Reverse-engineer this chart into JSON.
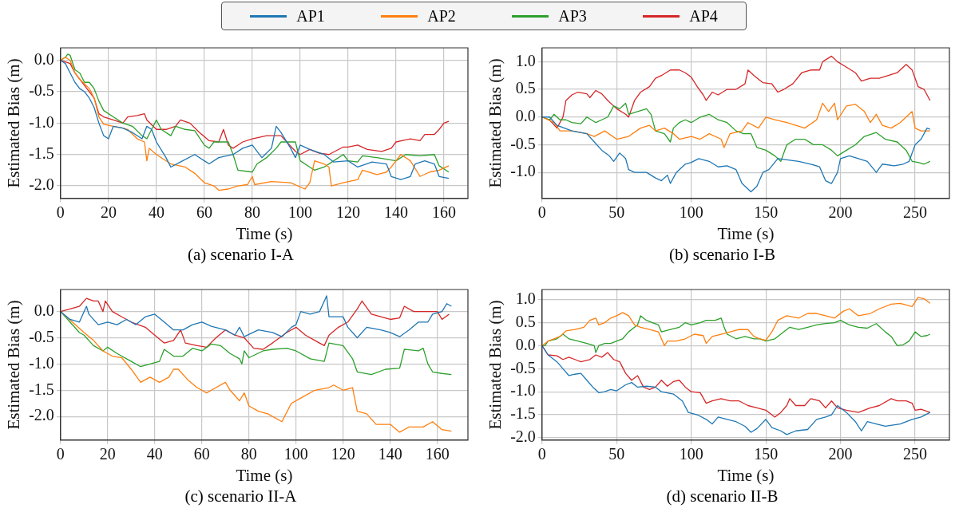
{
  "chart_data": [
    {
      "type": "line",
      "title": "(a) scenario I-A",
      "xlabel": "Time (s)",
      "ylabel": "Estimated Bias (m)",
      "legend": "top",
      "grid": true,
      "xlim": [
        0,
        170
      ],
      "xticks": [
        0,
        20,
        40,
        60,
        80,
        100,
        120,
        140,
        160
      ],
      "ylim": [
        -2.2,
        0.2
      ],
      "yticks": [
        {
          "value": -2,
          "label": "-2.0"
        },
        {
          "value": -1.5,
          "label": "-1.5"
        },
        {
          "value": -1,
          "label": "-1.0"
        },
        {
          "value": -0.5,
          "label": "-0.5"
        },
        {
          "value": 0,
          "label": "0.0"
        }
      ],
      "series": [
        {
          "name": "AP1",
          "color": "#1f77b4",
          "x": [
            0,
            2,
            4,
            6,
            8,
            10,
            12,
            14,
            16,
            18,
            20,
            22,
            26,
            30,
            34,
            36,
            38,
            40,
            44,
            46,
            50,
            56,
            60,
            62,
            66,
            72,
            76,
            80,
            84,
            88,
            90,
            92,
            96,
            98,
            100,
            104,
            110,
            114,
            120,
            124,
            130,
            136,
            138,
            142,
            146,
            148,
            152,
            156,
            158,
            162
          ],
          "values": [
            0,
            -0.05,
            -0.2,
            -0.35,
            -0.45,
            -0.5,
            -0.6,
            -0.75,
            -1.0,
            -1.2,
            -1.25,
            -1.05,
            -1.08,
            -1.15,
            -1.25,
            -1.05,
            -1.1,
            -1.3,
            -1.55,
            -1.7,
            -1.62,
            -1.5,
            -1.6,
            -1.65,
            -1.55,
            -1.5,
            -1.4,
            -1.35,
            -1.55,
            -1.4,
            -1.05,
            -1.15,
            -1.4,
            -1.55,
            -1.35,
            -1.42,
            -1.5,
            -1.62,
            -1.6,
            -1.7,
            -1.62,
            -1.65,
            -1.85,
            -1.9,
            -1.85,
            -1.65,
            -1.6,
            -1.65,
            -1.85,
            -1.88
          ]
        },
        {
          "name": "AP2",
          "color": "#ff7f0e",
          "x": [
            0,
            2,
            4,
            6,
            8,
            12,
            14,
            16,
            18,
            22,
            26,
            28,
            32,
            35,
            36,
            37,
            40,
            46,
            52,
            56,
            60,
            64,
            66,
            70,
            74,
            78,
            80,
            81,
            88,
            96,
            102,
            104,
            106,
            110,
            112,
            113,
            118,
            124,
            126,
            132,
            136,
            138,
            142,
            146,
            150,
            154,
            158,
            162
          ],
          "values": [
            0,
            0.05,
            0,
            -0.2,
            -0.3,
            -0.45,
            -0.6,
            -0.9,
            -1.02,
            -1.05,
            -1.08,
            -1.1,
            -1.25,
            -1.3,
            -1.6,
            -1.4,
            -1.5,
            -1.65,
            -1.7,
            -1.8,
            -1.95,
            -2.0,
            -2.07,
            -2.05,
            -2.0,
            -1.98,
            -1.85,
            -1.98,
            -1.93,
            -1.95,
            -2.05,
            -1.95,
            -1.6,
            -1.65,
            -1.7,
            -2.0,
            -1.95,
            -1.9,
            -1.75,
            -1.82,
            -1.78,
            -1.7,
            -1.5,
            -1.6,
            -1.85,
            -1.78,
            -1.75,
            -1.68
          ]
        },
        {
          "name": "AP3",
          "color": "#2ca02c",
          "x": [
            0,
            2,
            3,
            4,
            6,
            8,
            10,
            12,
            14,
            16,
            18,
            22,
            26,
            30,
            34,
            36,
            38,
            40,
            42,
            46,
            48,
            52,
            56,
            60,
            62,
            64,
            70,
            72,
            74,
            80,
            82,
            86,
            90,
            92,
            98,
            100,
            104,
            106,
            110,
            114,
            118,
            120,
            124,
            126,
            132,
            140,
            144,
            150,
            156,
            158,
            162
          ],
          "values": [
            0,
            0.05,
            0.1,
            0.08,
            -0.15,
            -0.2,
            -0.35,
            -0.35,
            -0.45,
            -0.65,
            -0.8,
            -0.9,
            -1.0,
            -1.05,
            -1.2,
            -1.25,
            -1.1,
            -0.95,
            -1.1,
            -1.2,
            -1.05,
            -1.1,
            -1.12,
            -1.35,
            -1.4,
            -1.3,
            -1.3,
            -1.5,
            -1.75,
            -1.78,
            -1.65,
            -1.55,
            -1.4,
            -1.3,
            -1.3,
            -1.6,
            -1.7,
            -1.75,
            -1.7,
            -1.6,
            -1.5,
            -1.6,
            -1.62,
            -1.52,
            -1.55,
            -1.6,
            -1.5,
            -1.52,
            -1.5,
            -1.68,
            -1.78
          ]
        },
        {
          "name": "AP4",
          "color": "#d62728",
          "x": [
            0,
            4,
            6,
            10,
            12,
            14,
            16,
            18,
            22,
            26,
            28,
            32,
            35,
            36,
            40,
            44,
            48,
            50,
            54,
            58,
            62,
            66,
            68,
            70,
            72,
            74,
            76,
            80,
            86,
            92,
            98,
            100,
            104,
            108,
            112,
            118,
            120,
            124,
            128,
            134,
            138,
            140,
            146,
            150,
            152,
            156,
            158,
            160,
            162
          ],
          "values": [
            0,
            -0.05,
            -0.2,
            -0.4,
            -0.5,
            -0.6,
            -0.85,
            -0.9,
            -0.95,
            -1.0,
            -0.9,
            -0.88,
            -0.85,
            -0.95,
            -1.1,
            -1.1,
            -1.05,
            -0.95,
            -1.0,
            -1.15,
            -1.28,
            -1.3,
            -1.1,
            -1.35,
            -1.4,
            -1.35,
            -1.3,
            -1.25,
            -1.2,
            -1.2,
            -1.45,
            -1.5,
            -1.42,
            -1.48,
            -1.5,
            -1.38,
            -1.38,
            -1.35,
            -1.42,
            -1.45,
            -1.4,
            -1.3,
            -1.25,
            -1.28,
            -1.18,
            -1.18,
            -1.1,
            -1.0,
            -0.97
          ]
        }
      ]
    },
    {
      "type": "line",
      "title": "(b) scenario I-B",
      "xlabel": "Time (s)",
      "ylabel": "Estimated Bias (m)",
      "grid": true,
      "xlim": [
        0,
        273
      ],
      "xticks": [
        0,
        50,
        100,
        150,
        200,
        250
      ],
      "ylim": [
        -1.47,
        1.25
      ],
      "yticks": [
        {
          "value": -1,
          "label": "-1.0"
        },
        {
          "value": -0.5,
          "label": "-0.5"
        },
        {
          "value": 0,
          "label": "0.0"
        },
        {
          "value": 0.5,
          "label": "0.5"
        },
        {
          "value": 1,
          "label": "1.0"
        }
      ],
      "series": [
        {
          "color": "#1f77b4",
          "x": [
            0,
            5,
            10,
            20,
            30,
            35,
            40,
            45,
            48,
            52,
            56,
            58,
            62,
            70,
            76,
            80,
            84,
            86,
            90,
            96,
            100,
            105,
            112,
            118,
            124,
            130,
            134,
            140,
            144,
            148,
            152,
            158,
            166,
            172,
            180,
            186,
            190,
            194,
            198,
            200,
            206,
            212,
            218,
            224,
            228,
            236,
            242,
            246,
            250,
            254,
            258,
            260
          ],
          "values": [
            0,
            0,
            -0.15,
            -0.25,
            -0.3,
            -0.45,
            -0.6,
            -0.7,
            -0.8,
            -0.65,
            -0.75,
            -0.95,
            -1.0,
            -1.0,
            -1.1,
            -1.15,
            -1.05,
            -1.2,
            -1.0,
            -0.85,
            -0.82,
            -0.75,
            -0.8,
            -0.9,
            -0.88,
            -0.95,
            -1.2,
            -1.35,
            -1.25,
            -1.0,
            -0.95,
            -0.75,
            -0.78,
            -0.8,
            -0.85,
            -0.9,
            -1.15,
            -1.2,
            -1.0,
            -0.75,
            -0.7,
            -0.75,
            -0.8,
            -1.0,
            -0.85,
            -0.88,
            -0.85,
            -0.8,
            -0.5,
            -0.4,
            -0.2,
            -0.22
          ]
        },
        {
          "color": "#ff7f0e",
          "x": [
            0,
            8,
            12,
            20,
            30,
            35,
            42,
            50,
            58,
            66,
            72,
            76,
            82,
            88,
            92,
            100,
            106,
            112,
            120,
            122,
            126,
            134,
            138,
            145,
            150,
            156,
            164,
            170,
            176,
            184,
            188,
            192,
            196,
            198,
            204,
            210,
            216,
            220,
            224,
            228,
            234,
            240,
            244,
            248,
            250,
            254,
            260
          ],
          "values": [
            0,
            -0.1,
            -0.25,
            -0.25,
            -0.3,
            -0.35,
            -0.25,
            -0.4,
            -0.35,
            -0.2,
            -0.15,
            -0.25,
            -0.2,
            -0.3,
            -0.4,
            -0.35,
            -0.4,
            -0.3,
            -0.4,
            -0.55,
            -0.3,
            -0.25,
            -0.1,
            -0.2,
            0,
            -0.05,
            -0.1,
            -0.15,
            -0.2,
            -0.05,
            0.25,
            0.1,
            0.25,
            -0.05,
            0.2,
            0.23,
            0.1,
            -0.1,
            0.05,
            -0.15,
            -0.2,
            -0.1,
            0,
            0.1,
            -0.2,
            -0.25,
            -0.25
          ]
        },
        {
          "color": "#2ca02c",
          "x": [
            0,
            5,
            8,
            12,
            16,
            20,
            26,
            30,
            36,
            40,
            44,
            48,
            52,
            56,
            58,
            64,
            70,
            73,
            76,
            82,
            86,
            88,
            92,
            96,
            100,
            106,
            112,
            118,
            124,
            130,
            135,
            140,
            144,
            150,
            156,
            160,
            164,
            170,
            176,
            182,
            188,
            194,
            198,
            204,
            210,
            216,
            224,
            230,
            238,
            244,
            248,
            252,
            256,
            260
          ],
          "values": [
            0,
            -0.05,
            0.05,
            -0.05,
            -0.05,
            -0.1,
            -0.12,
            0,
            -0.1,
            -0.05,
            0,
            0.2,
            0.15,
            0.25,
            0.05,
            0.1,
            0.15,
            0.05,
            -0.25,
            -0.3,
            -0.45,
            -0.2,
            -0.1,
            -0.05,
            -0.1,
            0,
            0.05,
            -0.05,
            -0.1,
            -0.25,
            -0.3,
            -0.3,
            -0.55,
            -0.6,
            -0.7,
            -0.8,
            -0.5,
            -0.4,
            -0.4,
            -0.5,
            -0.5,
            -0.6,
            -0.7,
            -0.6,
            -0.5,
            -0.35,
            -0.28,
            -0.4,
            -0.45,
            -0.6,
            -0.8,
            -0.82,
            -0.85,
            -0.8
          ]
        },
        {
          "color": "#d62728",
          "x": [
            0,
            5,
            10,
            14,
            16,
            20,
            24,
            30,
            32,
            36,
            40,
            44,
            50,
            56,
            58,
            62,
            66,
            72,
            76,
            80,
            86,
            92,
            96,
            100,
            104,
            108,
            110,
            114,
            118,
            124,
            130,
            136,
            138,
            142,
            148,
            154,
            158,
            162,
            168,
            174,
            180,
            186,
            188,
            194,
            198,
            204,
            210,
            214,
            220,
            226,
            232,
            238,
            244,
            248,
            252,
            256,
            260
          ],
          "values": [
            0,
            -0.05,
            -0.2,
            0,
            0.3,
            0.4,
            0.45,
            0.42,
            0.35,
            0.48,
            0.42,
            0.3,
            0.15,
            0.05,
            0,
            0.3,
            0.45,
            0.55,
            0.7,
            0.75,
            0.85,
            0.85,
            0.8,
            0.72,
            0.55,
            0.4,
            0.3,
            0.45,
            0.4,
            0.5,
            0.5,
            0.6,
            0.85,
            0.75,
            0.62,
            0.6,
            0.45,
            0.5,
            0.6,
            0.8,
            0.85,
            0.85,
            1.0,
            1.1,
            1.0,
            0.9,
            0.8,
            0.65,
            0.7,
            0.7,
            0.75,
            0.8,
            0.95,
            0.85,
            0.55,
            0.5,
            0.3
          ]
        }
      ]
    },
    {
      "type": "line",
      "title": "(c) scenario II-A",
      "xlabel": "Time (s)",
      "ylabel": "Estimated Bias (m)",
      "grid": true,
      "xlim": [
        0,
        173
      ],
      "xticks": [
        0,
        20,
        40,
        60,
        80,
        100,
        120,
        140,
        160
      ],
      "ylim": [
        -2.45,
        0.42
      ],
      "yticks": [
        {
          "value": -2,
          "label": "-2.0"
        },
        {
          "value": -1.5,
          "label": "-1.5"
        },
        {
          "value": -1,
          "label": "-1.0"
        },
        {
          "value": -0.5,
          "label": "-0.5"
        },
        {
          "value": 0,
          "label": "0.0"
        }
      ],
      "series": [
        {
          "color": "#1f77b4",
          "x": [
            0,
            4,
            8,
            11,
            12,
            16,
            20,
            24,
            28,
            32,
            36,
            40,
            44,
            48,
            52,
            56,
            60,
            64,
            70,
            74,
            76,
            78,
            84,
            90,
            94,
            98,
            100,
            102,
            106,
            110,
            113,
            114,
            120,
            122,
            126,
            130,
            136,
            140,
            144,
            148,
            152,
            156,
            158,
            162,
            164,
            166
          ],
          "values": [
            0,
            -0.15,
            -0.2,
            0.1,
            -0.05,
            -0.25,
            -0.2,
            -0.25,
            -0.15,
            -0.25,
            -0.1,
            -0.05,
            -0.2,
            -0.35,
            -0.35,
            -0.25,
            -0.2,
            -0.28,
            -0.35,
            -0.45,
            -0.3,
            -0.48,
            -0.35,
            -0.4,
            -0.48,
            -0.3,
            -0.25,
            0,
            -0.05,
            0,
            0.3,
            -0.1,
            -0.1,
            -0.3,
            -0.5,
            -0.3,
            -0.35,
            -0.4,
            -0.48,
            -0.35,
            -0.2,
            -0.2,
            -0.05,
            0,
            0.15,
            0.1
          ]
        },
        {
          "color": "#ff7f0e",
          "x": [
            0,
            5,
            10,
            14,
            18,
            22,
            26,
            30,
            34,
            38,
            42,
            46,
            48,
            50,
            54,
            58,
            62,
            66,
            70,
            72,
            76,
            78,
            80,
            84,
            88,
            94,
            98,
            102,
            108,
            114,
            116,
            120,
            124,
            126,
            130,
            134,
            140,
            144,
            148,
            154,
            158,
            162,
            166
          ],
          "values": [
            0,
            -0.2,
            -0.4,
            -0.55,
            -0.75,
            -0.85,
            -0.88,
            -1.1,
            -1.35,
            -1.25,
            -1.35,
            -1.25,
            -1.1,
            -1.1,
            -1.3,
            -1.45,
            -1.55,
            -1.45,
            -1.35,
            -1.5,
            -1.7,
            -1.55,
            -1.8,
            -1.9,
            -1.95,
            -2.1,
            -1.75,
            -1.65,
            -1.5,
            -1.45,
            -1.4,
            -1.5,
            -1.45,
            -1.9,
            -1.95,
            -2.15,
            -2.15,
            -2.3,
            -2.2,
            -2.2,
            -2.1,
            -2.25,
            -2.28
          ]
        },
        {
          "color": "#2ca02c",
          "x": [
            0,
            4,
            8,
            10,
            12,
            14,
            18,
            20,
            24,
            30,
            34,
            38,
            42,
            44,
            48,
            52,
            56,
            60,
            64,
            68,
            72,
            76,
            77,
            78,
            80,
            86,
            90,
            96,
            100,
            106,
            112,
            114,
            120,
            124,
            126,
            132,
            138,
            144,
            146,
            152,
            154,
            156,
            158,
            162,
            166
          ],
          "values": [
            0,
            -0.2,
            -0.4,
            -0.45,
            -0.55,
            -0.65,
            -0.75,
            -0.68,
            -0.8,
            -0.95,
            -1.05,
            -1.0,
            -0.95,
            -0.72,
            -0.85,
            -0.85,
            -0.7,
            -0.75,
            -0.62,
            -0.65,
            -0.8,
            -0.9,
            -1.0,
            -0.75,
            -0.88,
            -0.75,
            -0.72,
            -0.7,
            -0.75,
            -0.9,
            -0.95,
            -0.6,
            -0.65,
            -0.9,
            -1.15,
            -1.2,
            -1.1,
            -1.08,
            -0.72,
            -0.75,
            -0.7,
            -1.0,
            -1.15,
            -1.18,
            -1.2
          ]
        },
        {
          "color": "#d62728",
          "x": [
            0,
            4,
            8,
            11,
            14,
            16,
            18,
            19,
            22,
            26,
            30,
            36,
            40,
            44,
            48,
            51,
            53,
            58,
            62,
            66,
            70,
            74,
            78,
            82,
            86,
            90,
            96,
            100,
            104,
            108,
            112,
            114,
            118,
            122,
            126,
            128,
            132,
            136,
            140,
            144,
            146,
            150,
            156,
            160,
            162,
            165
          ],
          "values": [
            0,
            0.05,
            0.1,
            0.25,
            0.2,
            0.2,
            0,
            0.2,
            0,
            -0.1,
            -0.2,
            -0.3,
            -0.45,
            -0.6,
            -0.55,
            -0.35,
            -0.6,
            -0.65,
            -0.68,
            -0.5,
            -0.35,
            -0.45,
            -0.5,
            -0.7,
            -0.72,
            -0.6,
            -0.4,
            -0.3,
            -0.45,
            -0.55,
            -0.65,
            -0.45,
            -0.3,
            -0.2,
            0.05,
            0.2,
            -0.05,
            -0.1,
            -0.15,
            -0.12,
            0.1,
            0,
            0,
            0,
            -0.15,
            -0.05
          ]
        }
      ]
    },
    {
      "type": "line",
      "title": "(d) scenario II-B",
      "xlabel": "Time (s)",
      "ylabel": "Estimated Bias (m)",
      "grid": true,
      "xlim": [
        0,
        273
      ],
      "xticks": [
        0,
        50,
        100,
        150,
        200,
        250
      ],
      "ylim": [
        -2.05,
        1.22
      ],
      "yticks": [
        {
          "value": -2,
          "label": "-2.0"
        },
        {
          "value": -1.5,
          "label": "-1.5"
        },
        {
          "value": -1,
          "label": "-1.0"
        },
        {
          "value": -0.5,
          "label": "-0.5"
        },
        {
          "value": 0,
          "label": "0.0"
        },
        {
          "value": 0.5,
          "label": "0.5"
        },
        {
          "value": 1,
          "label": "1.0"
        }
      ],
      "series": [
        {
          "color": "#1f77b4",
          "x": [
            0,
            4,
            10,
            14,
            18,
            22,
            26,
            30,
            34,
            38,
            42,
            46,
            50,
            56,
            60,
            64,
            70,
            76,
            80,
            88,
            94,
            98,
            104,
            110,
            114,
            118,
            124,
            130,
            136,
            140,
            144,
            150,
            154,
            160,
            164,
            170,
            178,
            184,
            190,
            194,
            198,
            204,
            210,
            214,
            218,
            224,
            230,
            240,
            248,
            254,
            260
          ],
          "values": [
            0,
            -0.2,
            -0.35,
            -0.5,
            -0.65,
            -0.62,
            -0.6,
            -0.75,
            -0.9,
            -1.02,
            -1.0,
            -0.95,
            -0.98,
            -0.85,
            -0.8,
            -0.9,
            -0.88,
            -0.9,
            -1.0,
            -1.05,
            -1.2,
            -1.45,
            -1.5,
            -1.6,
            -1.7,
            -1.55,
            -1.6,
            -1.65,
            -1.75,
            -1.88,
            -1.8,
            -1.6,
            -1.78,
            -1.85,
            -1.93,
            -1.85,
            -1.82,
            -1.6,
            -1.55,
            -1.5,
            -1.3,
            -1.45,
            -1.65,
            -1.85,
            -1.65,
            -1.7,
            -1.75,
            -1.7,
            -1.6,
            -1.55,
            -1.45
          ]
        },
        {
          "color": "#ff7f0e",
          "x": [
            0,
            4,
            8,
            12,
            16,
            22,
            28,
            32,
            36,
            38,
            42,
            46,
            50,
            54,
            58,
            62,
            66,
            72,
            78,
            80,
            82,
            84,
            90,
            96,
            102,
            108,
            110,
            114,
            120,
            126,
            132,
            138,
            142,
            146,
            150,
            154,
            158,
            164,
            172,
            178,
            184,
            190,
            196,
            202,
            206,
            212,
            220,
            226,
            234,
            240,
            248,
            252,
            256,
            260
          ],
          "values": [
            0,
            0.1,
            0.15,
            0.2,
            0.32,
            0.35,
            0.4,
            0.55,
            0.6,
            0.45,
            0.5,
            0.6,
            0.65,
            0.72,
            0.65,
            0.45,
            0.4,
            0.35,
            0.3,
            0.15,
            0,
            0.1,
            0.1,
            0.15,
            0.25,
            0.22,
            0.05,
            0.2,
            0.25,
            0.3,
            0.35,
            0.35,
            0.2,
            0.15,
            0.12,
            0.3,
            0.55,
            0.65,
            0.6,
            0.7,
            0.7,
            0.65,
            0.6,
            0.75,
            0.8,
            0.65,
            0.7,
            0.8,
            0.9,
            0.92,
            0.85,
            1.05,
            1.02,
            0.92
          ]
        },
        {
          "color": "#2ca02c",
          "x": [
            0,
            2,
            4,
            10,
            14,
            18,
            24,
            30,
            35,
            36,
            38,
            42,
            46,
            50,
            54,
            58,
            62,
            64,
            66,
            70,
            74,
            78,
            80,
            86,
            92,
            96,
            100,
            106,
            110,
            116,
            120,
            122,
            124,
            130,
            136,
            142,
            146,
            150,
            156,
            160,
            166,
            172,
            178,
            184,
            190,
            196,
            200,
            206,
            212,
            218,
            224,
            230,
            234,
            238,
            242,
            246,
            250,
            254,
            258,
            260
          ],
          "values": [
            0,
            0,
            0.1,
            0.15,
            0.25,
            0.15,
            0.1,
            0.05,
            0,
            -0.15,
            0,
            0.05,
            0.05,
            0.1,
            0.15,
            0.3,
            0.4,
            0.45,
            0.65,
            0.55,
            0.5,
            0.45,
            0.3,
            0.35,
            0.4,
            0.5,
            0.45,
            0.5,
            0.55,
            0.55,
            0.6,
            0.4,
            0.25,
            0.15,
            0.2,
            0.15,
            0.15,
            0.1,
            0.15,
            0.25,
            0.4,
            0.35,
            0.4,
            0.45,
            0.48,
            0.5,
            0.55,
            0.45,
            0.4,
            0.38,
            0.48,
            0.3,
            0.2,
            0,
            0.02,
            0.1,
            0.3,
            0.2,
            0.22,
            0.25
          ]
        },
        {
          "color": "#d62728",
          "x": [
            0,
            4,
            10,
            14,
            18,
            22,
            26,
            32,
            36,
            40,
            44,
            48,
            52,
            56,
            60,
            64,
            68,
            72,
            76,
            80,
            84,
            88,
            92,
            96,
            100,
            106,
            110,
            114,
            120,
            126,
            132,
            138,
            144,
            150,
            156,
            160,
            164,
            166,
            170,
            176,
            180,
            186,
            190,
            194,
            198,
            204,
            212,
            220,
            226,
            234,
            238,
            244,
            248,
            250,
            254,
            260
          ],
          "values": [
            0,
            -0.2,
            -0.22,
            -0.3,
            -0.25,
            -0.3,
            -0.35,
            -0.3,
            -0.2,
            -0.25,
            -0.15,
            -0.3,
            -0.35,
            -0.6,
            -0.75,
            -0.65,
            -0.9,
            -0.95,
            -0.9,
            -0.75,
            -0.88,
            -0.78,
            -0.75,
            -0.9,
            -1.0,
            -1.02,
            -1.25,
            -1.2,
            -1.15,
            -1.2,
            -1.2,
            -1.3,
            -1.35,
            -1.4,
            -1.55,
            -1.45,
            -1.3,
            -1.15,
            -1.3,
            -1.3,
            -1.15,
            -1.2,
            -1.35,
            -1.2,
            -1.35,
            -1.4,
            -1.45,
            -1.35,
            -1.3,
            -1.15,
            -1.2,
            -1.2,
            -1.25,
            -1.4,
            -1.38,
            -1.45
          ]
        }
      ]
    }
  ]
}
